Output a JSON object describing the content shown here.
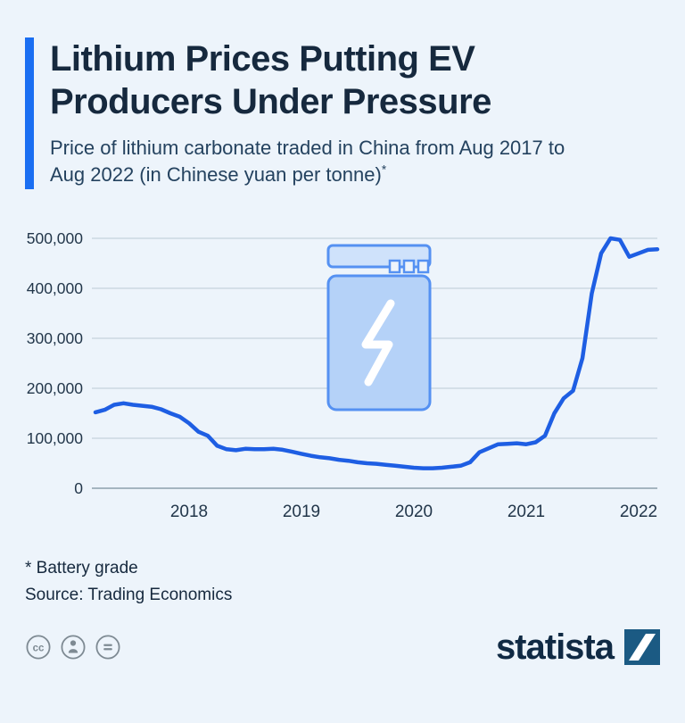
{
  "header": {
    "title_line1": "Lithium Prices Putting EV",
    "title_line2": "Producers Under Pressure",
    "subtitle": "Price of lithium carbonate traded in China from Aug 2017 to Aug 2022 (in Chinese yuan per tonne)",
    "footnote_marker": "*"
  },
  "chart_data": {
    "type": "line",
    "title": "Price of lithium carbonate traded in China",
    "unit": "Chinese yuan per tonne",
    "x_start": "Aug 2017",
    "x_end": "Aug 2022",
    "interval": "monthly",
    "values": [
      152000,
      157000,
      167000,
      170000,
      167000,
      165000,
      163000,
      158000,
      150000,
      143000,
      130000,
      113000,
      105000,
      85000,
      78000,
      76000,
      79000,
      78000,
      78000,
      79000,
      77000,
      73000,
      69000,
      65000,
      62000,
      60000,
      57000,
      55000,
      52000,
      50000,
      49000,
      47000,
      45000,
      43000,
      41000,
      40000,
      40000,
      41000,
      43000,
      45000,
      52000,
      72000,
      80000,
      88000,
      89000,
      90000,
      88000,
      92000,
      105000,
      150000,
      180000,
      195000,
      260000,
      390000,
      470000,
      500000,
      497000,
      463000,
      470000,
      477000,
      478000
    ],
    "ylim": [
      0,
      500000
    ],
    "yticks": [
      {
        "value": 0,
        "label": "0"
      },
      {
        "value": 100000,
        "label": "100,000"
      },
      {
        "value": 200000,
        "label": "200,000"
      },
      {
        "value": 300000,
        "label": "300,000"
      },
      {
        "value": 400000,
        "label": "400,000"
      },
      {
        "value": 500000,
        "label": "500,000"
      }
    ],
    "xticks": [
      {
        "label": "2018",
        "month_index": 10
      },
      {
        "label": "2019",
        "month_index": 22
      },
      {
        "label": "2020",
        "month_index": 34
      },
      {
        "label": "2021",
        "month_index": 46
      },
      {
        "label": "2022",
        "month_index": 58
      }
    ],
    "line_color": "#1e5ee3",
    "grid": true,
    "legend": "none"
  },
  "footer": {
    "note": "* Battery grade",
    "source": "Source: Trading Economics",
    "brand": "statista"
  },
  "icons": {
    "license": [
      "cc-icon",
      "attribution-icon",
      "equals-icon"
    ],
    "chart_decoration": "battery-lightning-icon",
    "brand_mark": "statista-square-icon"
  },
  "colors": {
    "background": "#edf4fb",
    "accent": "#1a6ef2",
    "line": "#1e5ee3",
    "brand_square": "#1b5a83"
  }
}
